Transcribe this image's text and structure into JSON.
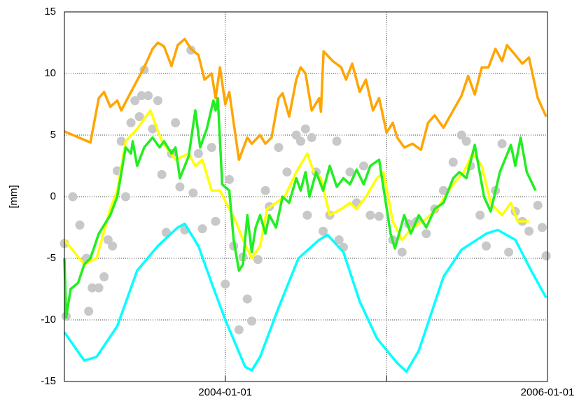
{
  "chart_data": {
    "type": "line",
    "y_label": "[mm]",
    "xlim": [
      "2003-01-01",
      "2006-01-01"
    ],
    "xticks": [
      "2004-01-01",
      {
        "value": "2005-01-01",
        "label": null
      },
      "2006-01-01"
    ],
    "ylim": [
      -15,
      15
    ],
    "yticks": [
      -15,
      -10,
      -5,
      0,
      5,
      10,
      15
    ],
    "grid": true,
    "series": [
      {
        "type": "scatter",
        "color": "#c8c8c8",
        "x": [
          "2003-01-01",
          "2003-01-05",
          "2003-01-20",
          "2003-02-05",
          "2003-02-20",
          "2003-02-25",
          "2003-03-05",
          "2003-03-20",
          "2003-04-01",
          "2003-04-10",
          "2003-04-20",
          "2003-05-01",
          "2003-05-10",
          "2003-05-20",
          "2003-06-01",
          "2003-06-10",
          "2003-06-20",
          "2003-06-25",
          "2003-07-01",
          "2003-07-10",
          "2003-07-20",
          "2003-08-01",
          "2003-08-10",
          "2003-08-20",
          "2003-09-01",
          "2003-09-10",
          "2003-09-20",
          "2003-10-01",
          "2003-10-15",
          "2003-10-20",
          "2003-11-01",
          "2003-11-10",
          "2003-12-01",
          "2003-12-10",
          "2004-01-01",
          "2004-01-10",
          "2004-01-20",
          "2004-02-01",
          "2004-02-10",
          "2004-02-20",
          "2004-03-01",
          "2004-03-15",
          "2004-04-01",
          "2004-04-10",
          "2004-05-01",
          "2004-05-20",
          "2004-06-10",
          "2004-06-20",
          "2004-07-01",
          "2004-07-05",
          "2004-07-15",
          "2004-07-25",
          "2004-08-10",
          "2004-08-25",
          "2004-09-10",
          "2004-09-15",
          "2004-09-25",
          "2004-10-10",
          "2004-10-25",
          "2004-11-10",
          "2004-11-25",
          "2004-12-15",
          "2005-01-15",
          "2005-02-05",
          "2005-02-20",
          "2005-03-10",
          "2005-04-01",
          "2005-04-20",
          "2005-05-10",
          "2005-06-01",
          "2005-06-20",
          "2005-07-01",
          "2005-07-10",
          "2005-08-01",
          "2005-08-15",
          "2005-09-05",
          "2005-09-20",
          "2005-10-05",
          "2005-10-20",
          "2005-11-05",
          "2005-11-20",
          "2005-12-10",
          "2005-12-20",
          "2005-12-29"
        ],
        "values": [
          -3.8,
          -9.7,
          0,
          -2.3,
          -5,
          -9.3,
          -7.4,
          -7.4,
          -6.5,
          -3.5,
          -4,
          2.1,
          4.5,
          0,
          6,
          7.8,
          6.5,
          8.2,
          10.3,
          8.2,
          5.5,
          7.8,
          1.8,
          -2.9,
          3.5,
          6,
          0.8,
          -2.7,
          11.9,
          0.3,
          3.5,
          -2.6,
          4,
          -2,
          -7.1,
          1.4,
          -4,
          -10.8,
          -4.9,
          -8.3,
          -10.1,
          -5.1,
          0.5,
          -0.8,
          4,
          2,
          5,
          4.5,
          5.5,
          -1.5,
          4.8,
          2,
          -2.8,
          -1.5,
          4.5,
          -3.5,
          -4.1,
          2,
          -0.5,
          2.5,
          -1.5,
          -1.6,
          -3.5,
          -4.5,
          -2.2,
          -2,
          -3,
          -1,
          0.5,
          2.8,
          5,
          4.5,
          2.5,
          -1.5,
          -4,
          0.5,
          4.3,
          -4.5,
          -1.2,
          -2,
          -2.8,
          -0.7,
          -2.5,
          -4.8
        ]
      },
      {
        "type": "line",
        "color": "#00ffff",
        "x": [
          "2003-01-01",
          "2003-02-15",
          "2003-03-15",
          "2003-05-01",
          "2003-06-15",
          "2003-08-01",
          "2003-09-15",
          "2003-10-01",
          "2003-11-01",
          "2003-12-01",
          "2004-01-01",
          "2004-02-15",
          "2004-03-01",
          "2004-03-20",
          "2004-05-01",
          "2004-06-15",
          "2004-08-01",
          "2004-08-20",
          "2004-09-25",
          "2004-11-01",
          "2004-12-10",
          "2005-01-25",
          "2005-02-15",
          "2005-03-15",
          "2005-05-10",
          "2005-06-20",
          "2005-08-15",
          "2005-09-10",
          "2005-10-20",
          "2005-11-25",
          "2005-12-29"
        ],
        "values": [
          -11,
          -13.3,
          -13,
          -10.5,
          -6,
          -4,
          -2.5,
          -2.2,
          -4,
          -7,
          -10,
          -13.8,
          -14.1,
          -13,
          -9,
          -5,
          -3.5,
          -3.1,
          -4.5,
          -8.5,
          -11.5,
          -13.5,
          -14.2,
          -12.5,
          -6.5,
          -4.3,
          -3,
          -2.7,
          -3.5,
          -6,
          -8.2
        ]
      },
      {
        "type": "line",
        "color": "#ffff00",
        "x": [
          "2003-01-01",
          "2003-02-15",
          "2003-03-15",
          "2003-04-15",
          "2003-05-01",
          "2003-05-20",
          "2003-06-15",
          "2003-07-15",
          "2003-08-10",
          "2003-09-10",
          "2003-10-10",
          "2003-10-25",
          "2003-11-10",
          "2003-12-01",
          "2003-12-20",
          "2004-01-10",
          "2004-01-25",
          "2004-02-10",
          "2004-03-01",
          "2004-03-20",
          "2004-04-05",
          "2004-04-25",
          "2004-05-15",
          "2004-06-10",
          "2004-07-05",
          "2004-07-20",
          "2004-08-05",
          "2004-08-25",
          "2004-09-20",
          "2004-10-10",
          "2004-10-25",
          "2004-11-15",
          "2004-12-10",
          "2004-12-25",
          "2005-01-15",
          "2005-02-05",
          "2005-03-01",
          "2005-03-25",
          "2005-04-25",
          "2005-06-01",
          "2005-06-25",
          "2005-07-15",
          "2005-08-05",
          "2005-08-25",
          "2005-09-20",
          "2005-10-10",
          "2005-10-25",
          "2005-11-20"
        ],
        "values": [
          -3.5,
          -5.5,
          -5,
          -1,
          0.5,
          4.5,
          5.5,
          7,
          4.5,
          3,
          3.5,
          2.5,
          3,
          0.5,
          0.5,
          -1,
          -2,
          -3.5,
          -5,
          -4,
          -1,
          -0.5,
          0,
          2,
          3.5,
          2,
          1.5,
          -1.5,
          -1,
          -0.5,
          -1,
          0,
          1.5,
          2,
          -2,
          -3.5,
          -2.5,
          -2,
          -1,
          1,
          2,
          3.5,
          2.5,
          -0.5,
          -1.5,
          -0.5,
          -2,
          -2
        ]
      },
      {
        "type": "line",
        "color": "#22ee22",
        "x": [
          "2003-01-01",
          "2003-01-05",
          "2003-01-15",
          "2003-02-01",
          "2003-02-15",
          "2003-03-01",
          "2003-03-20",
          "2003-04-15",
          "2003-05-01",
          "2003-05-20",
          "2003-06-01",
          "2003-06-05",
          "2003-06-15",
          "2003-07-01",
          "2003-07-20",
          "2003-08-05",
          "2003-08-15",
          "2003-09-01",
          "2003-09-10",
          "2003-09-20",
          "2003-10-10",
          "2003-10-25",
          "2003-11-05",
          "2003-11-20",
          "2003-12-05",
          "2003-12-10",
          "2003-12-15",
          "2003-12-25",
          "2004-01-10",
          "2004-01-20",
          "2004-02-01",
          "2004-02-10",
          "2004-02-20",
          "2004-03-01",
          "2004-03-10",
          "2004-03-20",
          "2004-04-01",
          "2004-04-10",
          "2004-04-25",
          "2004-05-10",
          "2004-05-25",
          "2004-06-10",
          "2004-06-20",
          "2004-07-01",
          "2004-07-10",
          "2004-07-25",
          "2004-08-10",
          "2004-08-25",
          "2004-09-10",
          "2004-09-25",
          "2004-10-10",
          "2004-10-25",
          "2004-11-10",
          "2004-11-25",
          "2004-12-15",
          "2005-01-10",
          "2005-01-20",
          "2005-02-10",
          "2005-02-25",
          "2005-03-15",
          "2005-04-01",
          "2005-04-20",
          "2005-05-10",
          "2005-06-01",
          "2005-06-15",
          "2005-07-01",
          "2005-07-20",
          "2005-08-10",
          "2005-08-25",
          "2005-09-15",
          "2005-10-10",
          "2005-10-20",
          "2005-11-01",
          "2005-11-15",
          "2005-12-05"
        ],
        "values": [
          -5,
          -9.8,
          -7.5,
          -7,
          -5.5,
          -5,
          -3,
          -1.5,
          0,
          4,
          3.5,
          4.5,
          2.5,
          4,
          4.8,
          4,
          4.5,
          3.5,
          4,
          1.5,
          3.3,
          7,
          4,
          5.5,
          7.8,
          7,
          8,
          1,
          0.5,
          -3.5,
          -6,
          -5.5,
          -1.5,
          -4.5,
          -2.5,
          -1.5,
          -3,
          -1.5,
          -2.5,
          0,
          -0.5,
          1.5,
          0.5,
          2,
          0,
          2,
          0.5,
          2.5,
          0.8,
          1.5,
          1,
          2.2,
          1,
          2.5,
          3,
          -3,
          -4.2,
          -1.5,
          -3,
          -1.5,
          -2.5,
          -1,
          -0.5,
          1.5,
          2,
          1.5,
          4.2,
          0,
          -1.2,
          2,
          4.2,
          2.5,
          4.8,
          2,
          0.5
        ]
      },
      {
        "type": "line",
        "color": "#ffa500",
        "x": [
          "2003-01-01",
          "2003-03-01",
          "2003-03-20",
          "2003-04-01",
          "2003-04-15",
          "2003-05-01",
          "2003-05-10",
          "2003-06-01",
          "2003-07-01",
          "2003-07-20",
          "2003-08-01",
          "2003-08-15",
          "2003-09-01",
          "2003-09-15",
          "2003-10-01",
          "2003-10-15",
          "2003-11-01",
          "2003-11-15",
          "2003-12-01",
          "2003-12-10",
          "2003-12-20",
          "2004-01-01",
          "2004-01-10",
          "2004-02-01",
          "2004-02-20",
          "2004-03-01",
          "2004-03-20",
          "2004-04-01",
          "2004-04-15",
          "2004-05-01",
          "2004-05-10",
          "2004-05-25",
          "2004-06-10",
          "2004-06-20",
          "2004-07-01",
          "2004-07-15",
          "2004-08-01",
          "2004-08-05",
          "2004-08-11",
          "2004-09-01",
          "2004-09-20",
          "2004-10-01",
          "2004-10-15",
          "2004-11-01",
          "2004-11-15",
          "2004-12-01",
          "2004-12-15",
          "2005-01-01",
          "2005-01-15",
          "2005-01-25",
          "2005-02-10",
          "2005-03-01",
          "2005-03-20",
          "2005-04-05",
          "2005-04-20",
          "2005-05-10",
          "2005-06-01",
          "2005-06-20",
          "2005-07-05",
          "2005-07-20",
          "2005-08-05",
          "2005-08-20",
          "2005-09-05",
          "2005-09-20",
          "2005-10-01",
          "2005-10-20",
          "2005-11-05",
          "2005-11-20",
          "2005-12-10",
          "2005-12-29"
        ],
        "values": [
          5.3,
          4.4,
          8,
          8.5,
          7.3,
          7.8,
          7,
          8.5,
          10.5,
          12,
          12.5,
          12.2,
          10.6,
          12.3,
          12.8,
          12,
          11.5,
          9.5,
          10,
          8,
          10.5,
          7.5,
          8.5,
          3,
          4.8,
          4.3,
          5,
          4.3,
          4.8,
          8,
          8.4,
          6.5,
          9.5,
          10.5,
          10,
          7,
          8,
          6.9,
          11.8,
          11,
          10.5,
          9.5,
          10.8,
          8.5,
          9.5,
          7,
          8,
          5.2,
          6,
          4.8,
          4,
          4.3,
          3.8,
          6,
          6.6,
          5.6,
          7,
          8.2,
          9.8,
          8.3,
          10.5,
          10.5,
          12,
          11,
          12.3,
          11.5,
          10.8,
          11.3,
          8,
          6.5
        ]
      }
    ]
  }
}
